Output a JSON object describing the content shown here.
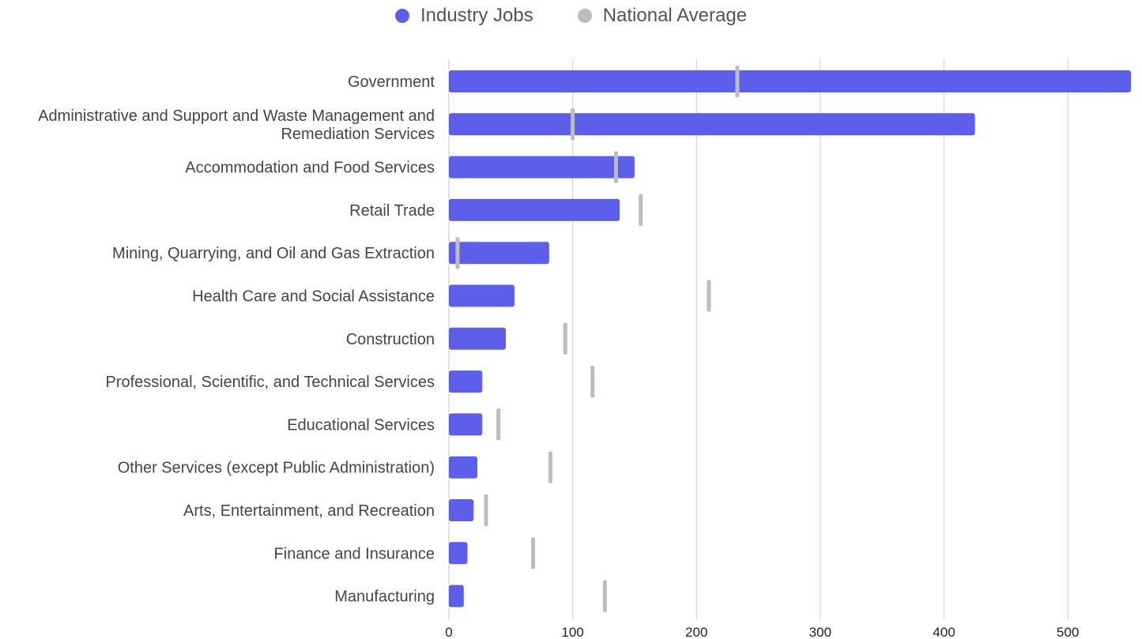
{
  "legend": {
    "items": [
      {
        "label": "Industry Jobs",
        "color": "#5d5fea"
      },
      {
        "label": "National Average",
        "color": "#bdbdbd"
      }
    ]
  },
  "chart_data": {
    "type": "bar",
    "orientation": "horizontal",
    "categories": [
      "Government",
      "Administrative and Support and Waste Management and Remediation Services",
      "Accommodation and Food Services",
      "Retail Trade",
      "Mining, Quarrying, and Oil and Gas Extraction",
      "Health Care and Social Assistance",
      "Construction",
      "Professional, Scientific, and Technical Services",
      "Educational Services",
      "Other Services (except Public Administration)",
      "Arts, Entertainment, and Recreation",
      "Finance and Insurance",
      "Manufacturing"
    ],
    "category_lines": [
      [
        "Government"
      ],
      [
        "Administrative and Support and Waste Management and",
        "Remediation Services"
      ],
      [
        "Accommodation and Food Services"
      ],
      [
        "Retail Trade"
      ],
      [
        "Mining, Quarrying, and Oil and Gas Extraction"
      ],
      [
        "Health Care and Social Assistance"
      ],
      [
        "Construction"
      ],
      [
        "Professional, Scientific, and Technical Services"
      ],
      [
        "Educational Services"
      ],
      [
        "Other Services (except Public Administration)"
      ],
      [
        "Arts, Entertainment, and Recreation"
      ],
      [
        "Finance and Insurance"
      ],
      [
        "Manufacturing"
      ]
    ],
    "series": [
      {
        "name": "Industry Jobs",
        "style": "bar",
        "color": "#5d5fea",
        "values": [
          551,
          425,
          150,
          138,
          81,
          53,
          46,
          27,
          27,
          23,
          20,
          15,
          12
        ]
      },
      {
        "name": "National Average",
        "style": "marker",
        "color": "#bdbdbd",
        "values": [
          233,
          100,
          135,
          155,
          7,
          210,
          94,
          116,
          40,
          82,
          30,
          68,
          126
        ]
      }
    ],
    "xlim": [
      0,
      551
    ],
    "xticks": [
      0,
      100,
      200,
      300,
      400,
      500
    ],
    "xtick_labels": [
      "0",
      "100",
      "200",
      "300",
      "400",
      "500"
    ],
    "grid": true,
    "legend_position": "top-center",
    "title": "",
    "xlabel": "",
    "ylabel": ""
  }
}
